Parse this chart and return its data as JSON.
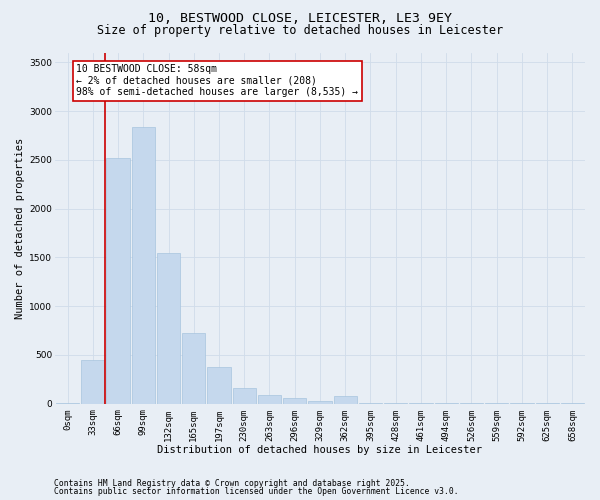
{
  "title_line1": "10, BESTWOOD CLOSE, LEICESTER, LE3 9EY",
  "title_line2": "Size of property relative to detached houses in Leicester",
  "xlabel": "Distribution of detached houses by size in Leicester",
  "ylabel": "Number of detached properties",
  "bar_labels": [
    "0sqm",
    "33sqm",
    "66sqm",
    "99sqm",
    "132sqm",
    "165sqm",
    "197sqm",
    "230sqm",
    "263sqm",
    "296sqm",
    "329sqm",
    "362sqm",
    "395sqm",
    "428sqm",
    "461sqm",
    "494sqm",
    "526sqm",
    "559sqm",
    "592sqm",
    "625sqm",
    "658sqm"
  ],
  "bar_values": [
    10,
    450,
    2520,
    2840,
    1540,
    730,
    380,
    160,
    90,
    60,
    30,
    80,
    10,
    10,
    5,
    5,
    5,
    5,
    5,
    5,
    5
  ],
  "bar_color": "#c5d8ed",
  "bar_edge_color": "#a8c4de",
  "grid_color": "#d0dcea",
  "background_color": "#e8eef5",
  "vline_color": "#cc0000",
  "vline_x": 1.5,
  "annotation_text": "10 BESTWOOD CLOSE: 58sqm\n← 2% of detached houses are smaller (208)\n98% of semi-detached houses are larger (8,535) →",
  "annotation_box_color": "#ffffff",
  "annotation_box_edge": "#cc0000",
  "ylim": [
    0,
    3600
  ],
  "yticks": [
    0,
    500,
    1000,
    1500,
    2000,
    2500,
    3000,
    3500
  ],
  "footer_line1": "Contains HM Land Registry data © Crown copyright and database right 2025.",
  "footer_line2": "Contains public sector information licensed under the Open Government Licence v3.0.",
  "title_fontsize": 9.5,
  "subtitle_fontsize": 8.5,
  "axis_label_fontsize": 7.5,
  "tick_fontsize": 6.5,
  "annotation_fontsize": 7,
  "footer_fontsize": 5.8
}
